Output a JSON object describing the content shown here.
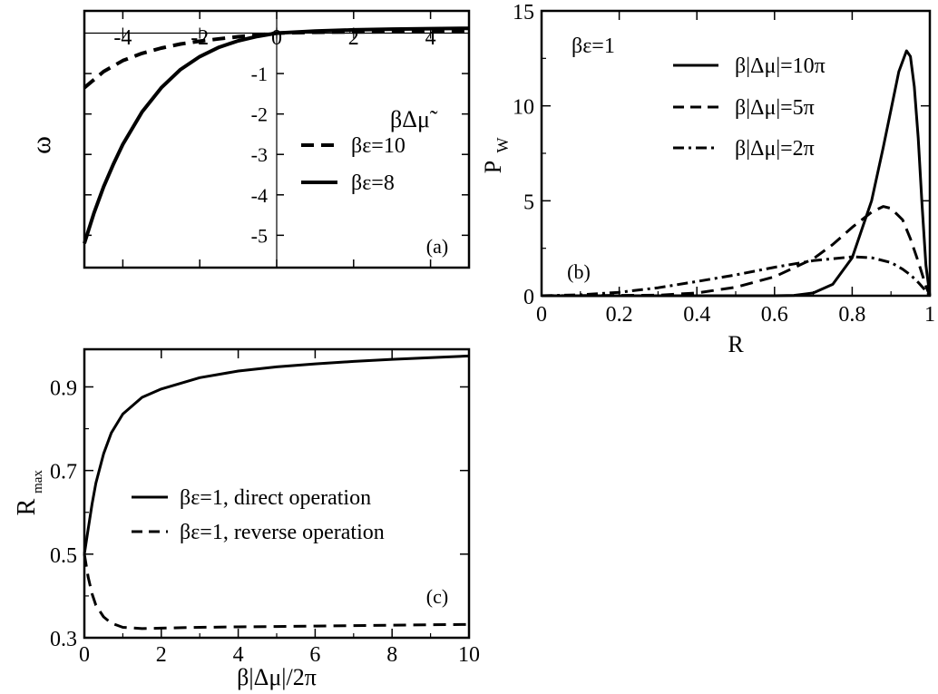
{
  "chart_data": [
    {
      "panel": "(a)",
      "type": "line",
      "xlim": [
        -5,
        5
      ],
      "ylim": [
        -5.8,
        0.55
      ],
      "x_ticks": [
        -4,
        -2,
        0,
        2,
        4
      ],
      "x_tick_labels": [
        "-4",
        "-2",
        "0",
        "2",
        "4"
      ],
      "y_ticks": [
        -1,
        -2,
        -3,
        -4,
        -5
      ],
      "y_tick_labels": [
        "-1",
        "-2",
        "-3",
        "-4",
        "-5"
      ],
      "xlabel": "βΔμ̃",
      "ylabel": "ω",
      "grid": false,
      "legend_position": "center-right",
      "series": [
        {
          "name": "βε=10",
          "style": "dashed",
          "x": [
            -5,
            -4.5,
            -4,
            -3.5,
            -3,
            -2.5,
            -2,
            -1.5,
            -1,
            -0.5,
            0,
            1,
            2,
            3,
            4,
            5
          ],
          "y": [
            -1.35,
            -0.95,
            -0.68,
            -0.5,
            -0.37,
            -0.27,
            -0.2,
            -0.14,
            -0.09,
            -0.05,
            0,
            0.02,
            0.03,
            0.035,
            0.04,
            0.04
          ]
        },
        {
          "name": "βε=8",
          "style": "solid",
          "x": [
            -5,
            -4.75,
            -4.5,
            -4.25,
            -4,
            -3.5,
            -3,
            -2.5,
            -2,
            -1.5,
            -1,
            -0.5,
            0,
            1,
            2,
            3,
            4,
            5
          ],
          "y": [
            -5.2,
            -4.45,
            -3.8,
            -3.25,
            -2.75,
            -1.95,
            -1.35,
            -0.9,
            -0.58,
            -0.35,
            -0.19,
            -0.08,
            0,
            0.05,
            0.08,
            0.1,
            0.11,
            0.12
          ]
        }
      ],
      "annotations": [
        "(a)"
      ]
    },
    {
      "panel": "(b)",
      "type": "line",
      "xlim": [
        0,
        1
      ],
      "ylim": [
        0,
        15
      ],
      "x_ticks": [
        0,
        0.2,
        0.4,
        0.6,
        0.8,
        1
      ],
      "x_tick_labels": [
        "0",
        "0.2",
        "0.4",
        "0.6",
        "0.8",
        "1"
      ],
      "y_ticks": [
        0,
        5,
        10,
        15
      ],
      "y_tick_labels": [
        "0",
        "5",
        "10",
        "15"
      ],
      "xlabel": "R",
      "ylabel": "P",
      "ylabel_sub": "W",
      "grid": false,
      "legend_position": "top-right",
      "series": [
        {
          "name": "β|Δμ|=10π",
          "style": "solid",
          "x": [
            0,
            0.6,
            0.65,
            0.7,
            0.75,
            0.8,
            0.85,
            0.88,
            0.9,
            0.92,
            0.94,
            0.95,
            0.96,
            0.97,
            0.98,
            0.99,
            1.0
          ],
          "y": [
            0,
            0,
            0.02,
            0.15,
            0.6,
            2.0,
            5.0,
            7.8,
            9.8,
            11.8,
            12.9,
            12.6,
            11.0,
            8.3,
            4.8,
            1.6,
            0
          ]
        },
        {
          "name": "β|Δμ|=5π",
          "style": "dashed",
          "x": [
            0,
            0.3,
            0.4,
            0.5,
            0.6,
            0.7,
            0.75,
            0.8,
            0.85,
            0.88,
            0.9,
            0.93,
            0.95,
            0.97,
            0.99,
            1.0
          ],
          "y": [
            0,
            0.03,
            0.15,
            0.45,
            1.0,
            1.95,
            2.7,
            3.6,
            4.4,
            4.7,
            4.6,
            4.0,
            3.0,
            1.8,
            0.5,
            0
          ]
        },
        {
          "name": "β|Δμ|=2π",
          "style": "dashdot",
          "x": [
            0,
            0.1,
            0.2,
            0.3,
            0.4,
            0.5,
            0.6,
            0.7,
            0.8,
            0.85,
            0.9,
            0.93,
            0.95,
            0.97,
            0.99,
            1.0
          ],
          "y": [
            0,
            0.05,
            0.18,
            0.42,
            0.75,
            1.1,
            1.5,
            1.85,
            2.05,
            2.0,
            1.75,
            1.4,
            1.1,
            0.7,
            0.25,
            0
          ]
        }
      ],
      "annotations": [
        "(b)",
        "βε=1"
      ]
    },
    {
      "panel": "(c)",
      "type": "line",
      "xlim": [
        0,
        10
      ],
      "ylim": [
        0.3,
        0.99
      ],
      "x_ticks": [
        0,
        2,
        4,
        6,
        8,
        10
      ],
      "x_tick_labels": [
        "0",
        "2",
        "4",
        "6",
        "8",
        "10"
      ],
      "y_ticks": [
        0.3,
        0.5,
        0.7,
        0.9
      ],
      "y_tick_labels": [
        "0.3",
        "0.5",
        "0.7",
        "0.9"
      ],
      "xlabel": "β|Δμ|/2π",
      "ylabel": "R",
      "ylabel_sub": "max",
      "grid": false,
      "legend_position": "center",
      "series": [
        {
          "name": "βε=1, direct operation",
          "style": "solid",
          "x": [
            0,
            0.1,
            0.2,
            0.3,
            0.5,
            0.7,
            1.0,
            1.5,
            2,
            3,
            4,
            5,
            6,
            7,
            8,
            9,
            10
          ],
          "y": [
            0.5,
            0.56,
            0.62,
            0.67,
            0.74,
            0.79,
            0.835,
            0.875,
            0.895,
            0.922,
            0.938,
            0.948,
            0.955,
            0.961,
            0.966,
            0.97,
            0.974
          ]
        },
        {
          "name": "βε=1, reverse operation",
          "style": "dashed",
          "x": [
            0,
            0.1,
            0.2,
            0.3,
            0.5,
            0.7,
            1.0,
            1.5,
            2,
            3,
            4,
            5,
            6,
            7,
            8,
            9,
            10
          ],
          "y": [
            0.5,
            0.445,
            0.405,
            0.378,
            0.35,
            0.335,
            0.325,
            0.322,
            0.323,
            0.325,
            0.326,
            0.327,
            0.328,
            0.329,
            0.33,
            0.331,
            0.332
          ]
        }
      ],
      "annotations": [
        "(c)"
      ]
    }
  ]
}
